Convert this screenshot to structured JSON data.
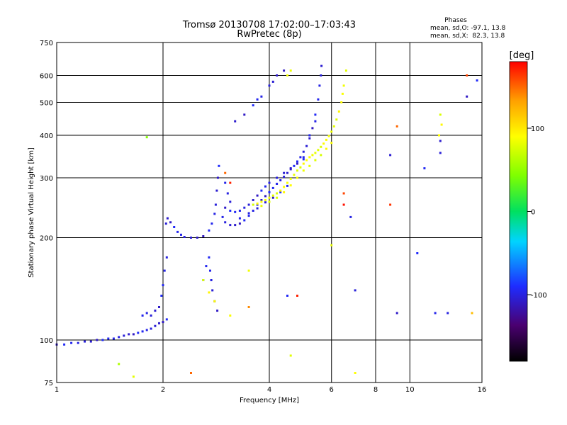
{
  "chart_data": {
    "type": "scatter",
    "title": "Tromsø 20130708 17:02:00–17:03:43",
    "subtitle": "RwPretec (8p)",
    "xlabel": "Frequency [MHz]",
    "ylabel": "Stationary phase Virtual Height [km]",
    "x_scale": "log",
    "y_scale": "log",
    "xlim": [
      1,
      16
    ],
    "ylim": [
      75,
      750
    ],
    "x_ticks": [
      1,
      2,
      4,
      6,
      8,
      10,
      16
    ],
    "y_ticks": [
      75,
      100,
      200,
      300,
      400,
      500,
      600,
      750
    ],
    "grid": true,
    "phase_stats": {
      "heading": "Phases",
      "line1": "mean, sd,O: -97.1, 13.8",
      "line2": "mean, sd,X:  82.3, 13.8"
    },
    "colorbar": {
      "label": "[deg]",
      "range": [
        -180,
        180
      ],
      "ticks": [
        100,
        0,
        -100
      ]
    },
    "colors": {
      "o_mode": "#1f33e8",
      "x_mode": "#dcf21e",
      "trace_blue": "#2a55d6"
    },
    "series": [
      {
        "mode": "O",
        "color_deg": -100,
        "points": [
          [
            1.0,
            97
          ],
          [
            1.05,
            97
          ],
          [
            1.1,
            98
          ],
          [
            1.15,
            98
          ],
          [
            1.2,
            99
          ],
          [
            1.25,
            99
          ],
          [
            1.3,
            100
          ],
          [
            1.35,
            100
          ],
          [
            1.4,
            101
          ],
          [
            1.45,
            101
          ],
          [
            1.5,
            102
          ],
          [
            1.55,
            103
          ],
          [
            1.6,
            104
          ],
          [
            1.65,
            104
          ],
          [
            1.7,
            105
          ],
          [
            1.75,
            106
          ],
          [
            1.8,
            107
          ],
          [
            1.85,
            108
          ],
          [
            1.9,
            110
          ],
          [
            1.95,
            112
          ],
          [
            2.0,
            113
          ],
          [
            2.05,
            115
          ],
          [
            1.75,
            118
          ],
          [
            1.8,
            120
          ],
          [
            1.85,
            118
          ],
          [
            1.9,
            122
          ],
          [
            1.95,
            125
          ],
          [
            1.98,
            135
          ],
          [
            2.0,
            145
          ],
          [
            2.02,
            160
          ],
          [
            2.05,
            175
          ],
          [
            2.04,
            220
          ],
          [
            2.06,
            228
          ],
          [
            2.1,
            222
          ],
          [
            2.15,
            215
          ],
          [
            2.2,
            208
          ],
          [
            2.25,
            204
          ],
          [
            2.3,
            201
          ],
          [
            2.4,
            200
          ],
          [
            2.5,
            200
          ],
          [
            2.6,
            202
          ],
          [
            2.7,
            210
          ],
          [
            2.75,
            220
          ],
          [
            2.8,
            235
          ],
          [
            2.82,
            250
          ],
          [
            2.84,
            275
          ],
          [
            2.86,
            300
          ],
          [
            2.88,
            325
          ],
          [
            2.7,
            175
          ],
          [
            2.72,
            160
          ],
          [
            2.74,
            150
          ],
          [
            2.76,
            140
          ],
          [
            2.8,
            130
          ],
          [
            2.85,
            122
          ],
          [
            2.6,
            150
          ],
          [
            2.65,
            165
          ],
          [
            2.95,
            230
          ],
          [
            3.0,
            222
          ],
          [
            3.1,
            218
          ],
          [
            3.2,
            218
          ],
          [
            3.3,
            220
          ],
          [
            3.4,
            225
          ],
          [
            3.5,
            232
          ],
          [
            3.6,
            240
          ],
          [
            3.7,
            250
          ],
          [
            3.8,
            258
          ],
          [
            3.9,
            265
          ],
          [
            4.0,
            272
          ],
          [
            4.1,
            280
          ],
          [
            4.2,
            288
          ],
          [
            4.3,
            295
          ],
          [
            4.4,
            302
          ],
          [
            4.5,
            310
          ],
          [
            4.6,
            318
          ],
          [
            4.7,
            325
          ],
          [
            4.8,
            335
          ],
          [
            4.9,
            345
          ],
          [
            5.0,
            358
          ],
          [
            5.1,
            372
          ],
          [
            5.2,
            392
          ],
          [
            5.3,
            420
          ],
          [
            5.4,
            460
          ],
          [
            5.5,
            510
          ],
          [
            5.55,
            560
          ],
          [
            5.6,
            600
          ],
          [
            5.62,
            640
          ],
          [
            3.0,
            245
          ],
          [
            3.1,
            240
          ],
          [
            3.2,
            238
          ],
          [
            3.3,
            240
          ],
          [
            3.4,
            245
          ],
          [
            3.5,
            250
          ],
          [
            3.6,
            258
          ],
          [
            3.7,
            266
          ],
          [
            3.8,
            275
          ],
          [
            3.9,
            283
          ],
          [
            4.0,
            290
          ],
          [
            4.2,
            300
          ],
          [
            4.4,
            310
          ],
          [
            4.6,
            320
          ],
          [
            4.8,
            330
          ],
          [
            5.0,
            340
          ],
          [
            3.3,
            228
          ],
          [
            3.5,
            236
          ],
          [
            3.7,
            244
          ],
          [
            3.9,
            254
          ],
          [
            4.1,
            262
          ],
          [
            4.3,
            272
          ],
          [
            4.5,
            284
          ],
          [
            3.0,
            290
          ],
          [
            3.05,
            270
          ],
          [
            3.1,
            255
          ],
          [
            3.2,
            440
          ],
          [
            3.4,
            460
          ],
          [
            3.6,
            490
          ],
          [
            3.7,
            510
          ],
          [
            3.8,
            520
          ],
          [
            4.0,
            560
          ],
          [
            4.1,
            575
          ],
          [
            4.2,
            600
          ],
          [
            4.4,
            620
          ],
          [
            4.5,
            135
          ],
          [
            5.0,
            345
          ],
          [
            6.8,
            230
          ],
          [
            7.0,
            140
          ],
          [
            8.8,
            350
          ],
          [
            9.2,
            120
          ],
          [
            10.5,
            180
          ],
          [
            11.0,
            320
          ],
          [
            11.8,
            120
          ],
          [
            12.8,
            120
          ],
          [
            12.2,
            355
          ],
          [
            12.2,
            385
          ],
          [
            14.5,
            520
          ],
          [
            15.5,
            580
          ],
          [
            5.2,
            400
          ],
          [
            5.4,
            440
          ]
        ]
      },
      {
        "mode": "X",
        "color_deg": 85,
        "points": [
          [
            3.6,
            250
          ],
          [
            3.7,
            252
          ],
          [
            3.8,
            255
          ],
          [
            3.9,
            258
          ],
          [
            4.0,
            262
          ],
          [
            4.1,
            266
          ],
          [
            4.2,
            270
          ],
          [
            4.3,
            275
          ],
          [
            4.4,
            282
          ],
          [
            4.5,
            290
          ],
          [
            4.6,
            298
          ],
          [
            4.7,
            306
          ],
          [
            4.8,
            315
          ],
          [
            4.9,
            322
          ],
          [
            5.0,
            330
          ],
          [
            5.1,
            338
          ],
          [
            5.2,
            345
          ],
          [
            5.3,
            350
          ],
          [
            5.4,
            355
          ],
          [
            5.5,
            362
          ],
          [
            5.6,
            370
          ],
          [
            5.7,
            378
          ],
          [
            5.8,
            388
          ],
          [
            5.9,
            398
          ],
          [
            6.0,
            410
          ],
          [
            6.1,
            425
          ],
          [
            6.2,
            445
          ],
          [
            6.3,
            470
          ],
          [
            6.4,
            500
          ],
          [
            6.45,
            530
          ],
          [
            6.5,
            560
          ],
          [
            3.8,
            248
          ],
          [
            4.0,
            255
          ],
          [
            4.2,
            262
          ],
          [
            4.4,
            272
          ],
          [
            4.6,
            285
          ],
          [
            4.8,
            300
          ],
          [
            5.0,
            315
          ],
          [
            5.2,
            325
          ],
          [
            5.4,
            338
          ],
          [
            5.6,
            350
          ],
          [
            5.8,
            365
          ],
          [
            6.0,
            380
          ],
          [
            4.5,
            600
          ],
          [
            4.6,
            620
          ],
          [
            6.6,
            620
          ],
          [
            2.6,
            150
          ],
          [
            2.7,
            138
          ],
          [
            2.8,
            130
          ],
          [
            3.1,
            118
          ],
          [
            3.5,
            160
          ],
          [
            6.0,
            190
          ],
          [
            4.6,
            90
          ],
          [
            12.2,
            460
          ],
          [
            12.3,
            430
          ],
          [
            12.1,
            400
          ]
        ]
      },
      {
        "mode": "other",
        "points": [
          [
            1.8,
            395,
            45
          ],
          [
            1.5,
            85,
            60
          ],
          [
            2.4,
            80,
            150
          ],
          [
            3.0,
            310,
            150
          ],
          [
            3.1,
            290,
            170
          ],
          [
            3.5,
            125,
            140
          ],
          [
            4.8,
            135,
            170
          ],
          [
            6.5,
            270,
            160
          ],
          [
            6.5,
            250,
            175
          ],
          [
            8.8,
            250,
            165
          ],
          [
            9.2,
            425,
            150
          ],
          [
            14.5,
            600,
            160
          ],
          [
            15.0,
            120,
            120
          ],
          [
            7.0,
            80,
            90
          ],
          [
            1.65,
            78,
            80
          ]
        ]
      }
    ]
  }
}
